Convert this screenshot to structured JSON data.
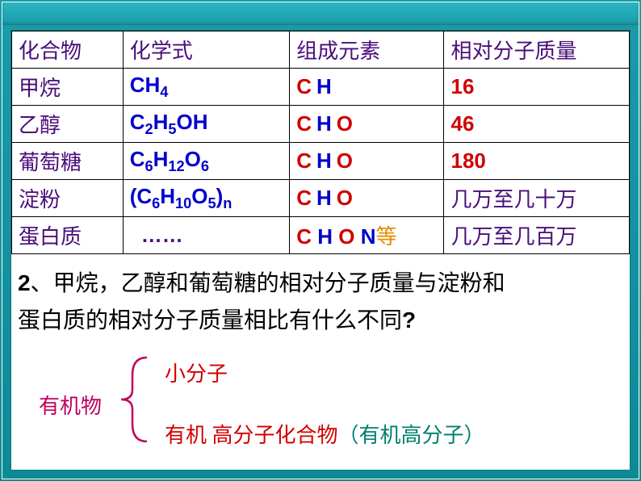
{
  "table": {
    "headers": [
      "化合物",
      "化学式",
      "组成元素",
      "相对分子质量"
    ],
    "rows": [
      {
        "name": "甲烷",
        "formula_html": "CH<sub>4</sub>",
        "elements": [
          {
            "t": "C",
            "c": "c-red"
          },
          {
            "t": "",
            "c": ""
          },
          {
            "t": "H",
            "c": "c-blue"
          }
        ],
        "mass": "16",
        "mass_class": "mass-red"
      },
      {
        "name": "乙醇",
        "formula_html": "C<sub>2</sub>H<sub>5</sub>OH",
        "elements": [
          {
            "t": "C",
            "c": "c-red"
          },
          {
            "t": "",
            "c": ""
          },
          {
            "t": "H",
            "c": "c-blue"
          },
          {
            "t": "",
            "c": ""
          },
          {
            "t": "O",
            "c": "c-red"
          }
        ],
        "mass": "46",
        "mass_class": "mass-red"
      },
      {
        "name": "葡萄糖",
        "formula_html": "C<sub>6</sub>H<sub>12</sub>O<sub>6</sub>",
        "elements": [
          {
            "t": "C",
            "c": "c-red"
          },
          {
            "t": "",
            "c": ""
          },
          {
            "t": "H",
            "c": "c-blue"
          },
          {
            "t": "",
            "c": ""
          },
          {
            "t": "O",
            "c": "c-red"
          }
        ],
        "mass": "180",
        "mass_class": "mass-red"
      },
      {
        "name": "淀粉",
        "formula_html": "(C<sub>6</sub>H<sub>10</sub>O<sub>5</sub>)<sub>n</sub>",
        "elements": [
          {
            "t": "C",
            "c": "c-red"
          },
          {
            "t": "",
            "c": ""
          },
          {
            "t": "H",
            "c": "c-blue"
          },
          {
            "t": "",
            "c": ""
          },
          {
            "t": "O",
            "c": "c-red"
          }
        ],
        "mass": "几万至几十万",
        "mass_class": "mass-cn"
      },
      {
        "name": "蛋白质",
        "formula_html": "<span class='dots'>……</span>",
        "elements": [
          {
            "t": "C ",
            "c": "c-red"
          },
          {
            "t": "H ",
            "c": "c-blue"
          },
          {
            "t": "O ",
            "c": "c-red"
          },
          {
            "t": "N",
            "c": "c-blue"
          }
        ],
        "elements_suffix": "等",
        "mass": "几万至几百万",
        "mass_class": "mass-cn"
      }
    ],
    "col_widths": [
      "18%",
      "27%",
      "25%",
      "30%"
    ]
  },
  "question": {
    "num": "2",
    "sep": "、",
    "text_a": "甲烷，乙醇和葡萄糖的相对分子质量与淀粉和",
    "text_b": "蛋白质的相对分子质量相比有什么不同",
    "qm": "?"
  },
  "diagram": {
    "root": "有机物",
    "branch1": "小分子",
    "branch2_a": "有机 高分子化合物",
    "branch2_b": "（有机高分子）",
    "brace_color": "#c00060"
  },
  "colors": {
    "frame": "#1a9ba8",
    "purple": "#4a0e7a",
    "blue": "#0000cc",
    "red": "#d00000",
    "magenta": "#c00060",
    "teal": "#008070",
    "orange": "#e68a00"
  }
}
